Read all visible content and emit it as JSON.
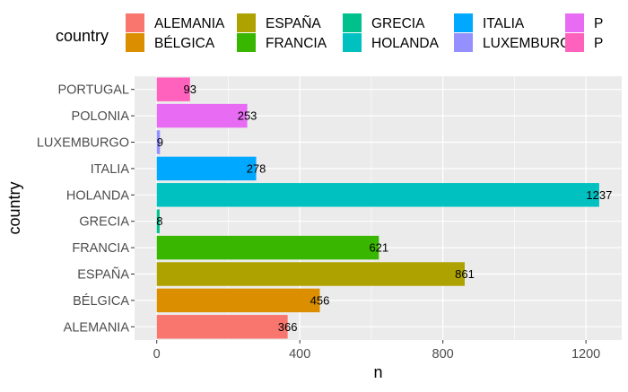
{
  "chart_data": {
    "type": "bar",
    "orientation": "horizontal",
    "xlabel": "n",
    "ylabel": "country",
    "xlim": [
      -62,
      1300
    ],
    "x_ticks": [
      0,
      400,
      800,
      1200
    ],
    "grid": true,
    "legend": {
      "title": "country",
      "placement": "top",
      "items": [
        {
          "label": "ALEMANIA",
          "color": "#F8766D"
        },
        {
          "label": "BÉLGICA",
          "color": "#DB8E00"
        },
        {
          "label": "ESPAÑA",
          "color": "#AEA200"
        },
        {
          "label": "FRANCIA",
          "color": "#39B600"
        },
        {
          "label": "GRECIA",
          "color": "#00C08B"
        },
        {
          "label": "HOLANDA",
          "color": "#00C0C0"
        },
        {
          "label": "ITALIA",
          "color": "#00A9FF"
        },
        {
          "label": "LUXEMBURGO",
          "color": "#9590FF"
        },
        {
          "label": "P",
          "color": "#E76BF3"
        },
        {
          "label": "P",
          "color": "#FF62BC"
        }
      ]
    },
    "categories": [
      "ALEMANIA",
      "BÉLGICA",
      "ESPAÑA",
      "FRANCIA",
      "GRECIA",
      "HOLANDA",
      "ITALIA",
      "LUXEMBURGO",
      "POLONIA",
      "PORTUGAL"
    ],
    "values": [
      366,
      456,
      861,
      621,
      8,
      1237,
      278,
      9,
      253,
      93
    ],
    "colors": [
      "#F8766D",
      "#DB8E00",
      "#AEA200",
      "#39B600",
      "#00C08B",
      "#00C0C0",
      "#00A9FF",
      "#9590FF",
      "#E76BF3",
      "#FF62BC"
    ]
  }
}
